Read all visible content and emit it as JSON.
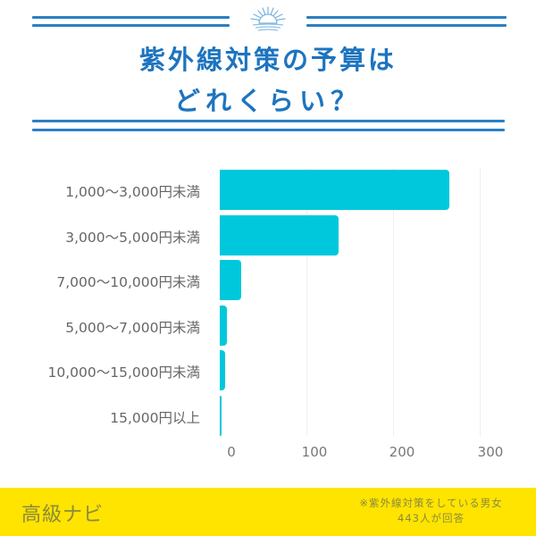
{
  "header": {
    "title_line1": "紫外線対策の予算は",
    "title_line2": "どれくらい？",
    "icon": "sun-over-waves-icon",
    "accent_color": "#1d74bf"
  },
  "chart_data": {
    "type": "bar",
    "orientation": "horizontal",
    "title": "紫外線対策の予算はどれくらい？",
    "categories": [
      "1,000〜3,000円未満",
      "3,000〜5,000円未満",
      "7,000〜10,000円未満",
      "5,000〜7,000円未満",
      "10,000〜15,000円未満",
      "15,000円以上"
    ],
    "values": [
      265,
      137,
      25,
      8,
      6,
      2
    ],
    "xlabel": "",
    "ylabel": "",
    "xlim": [
      0,
      300
    ],
    "xticks": [
      "0",
      "100",
      "200",
      "300"
    ],
    "grid": true,
    "legend": null,
    "bar_color": "#00c8dc"
  },
  "footer": {
    "brand": "高級ナビ",
    "note_line1": "※紫外線対策をしている男女",
    "note_line2": "443人が回答",
    "background": "#ffe400"
  }
}
